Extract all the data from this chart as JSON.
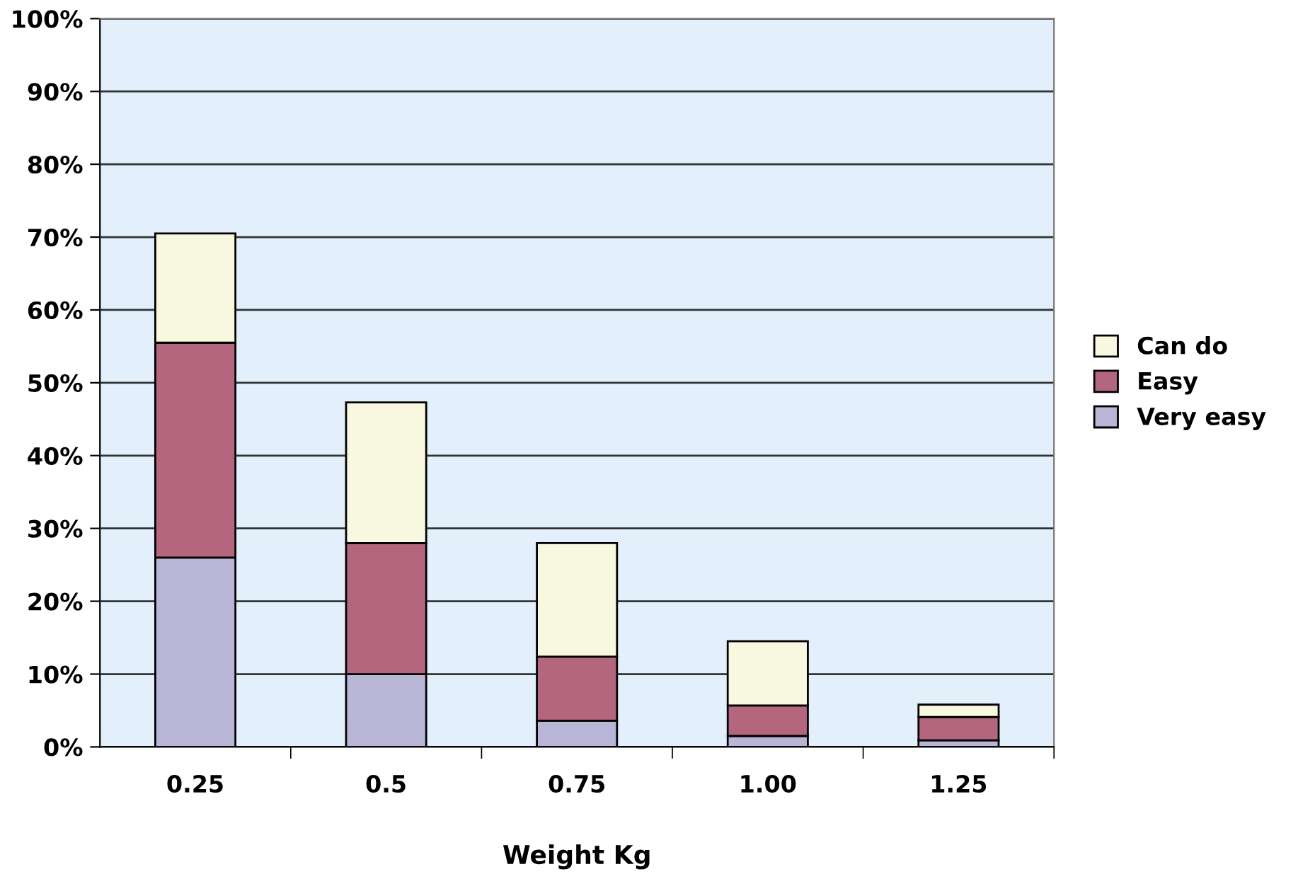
{
  "chart_data": {
    "type": "bar",
    "stacked": true,
    "xlabel": "Weight Kg",
    "categories": [
      "0.25",
      "0.5",
      "0.75",
      "1.00",
      "1.25"
    ],
    "series": [
      {
        "name": "Very easy",
        "color": "#b8b5d6",
        "values": [
          26,
          10,
          3.6,
          1.5,
          0.9
        ]
      },
      {
        "name": "Easy",
        "color": "#b3667e",
        "values": [
          29.5,
          18,
          8.8,
          4.2,
          3.2
        ]
      },
      {
        "name": "Can do",
        "color": "#f8f8e0",
        "values": [
          15,
          19.3,
          15.6,
          8.8,
          1.7
        ]
      }
    ],
    "ylim": [
      0,
      100
    ],
    "yticks": [
      {
        "value": 0,
        "label": "0%"
      },
      {
        "value": 10,
        "label": "10%"
      },
      {
        "value": 20,
        "label": "20%"
      },
      {
        "value": 30,
        "label": "30%"
      },
      {
        "value": 40,
        "label": "40%"
      },
      {
        "value": 50,
        "label": "50%"
      },
      {
        "value": 60,
        "label": "60%"
      },
      {
        "value": 70,
        "label": "70%"
      },
      {
        "value": 80,
        "label": "80%"
      },
      {
        "value": 90,
        "label": "90%"
      },
      {
        "value": 100,
        "label": "100%"
      }
    ],
    "grid": "y",
    "legend": "right"
  }
}
